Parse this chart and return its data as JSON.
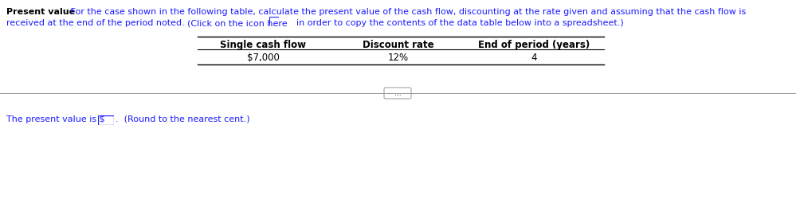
{
  "title_bold": "Present value",
  "line1_rest": "   For the case shown in the following table, calculate the present value of the cash flow, discounting at the rate given and assuming that the cash flow is",
  "line2_text": "received at the end of the period noted.",
  "click_text": "  (Click on the icon here",
  "click_after": "    in order to copy the contents of the data table below into a spreadsheet.)",
  "table_headers": [
    "Single cash flow",
    "Discount rate",
    "End of period (years)"
  ],
  "table_values": [
    "$7,000",
    "12%",
    "4"
  ],
  "bottom_prefix": "The present value is $",
  "bottom_suffix": ".  (Round to the nearest cent.)",
  "divider_dots": "...",
  "blue": "#1a1aff",
  "black": "#000000",
  "gray": "#999999",
  "bg": "#ffffff",
  "fs": 8.0,
  "table_fs": 8.5
}
